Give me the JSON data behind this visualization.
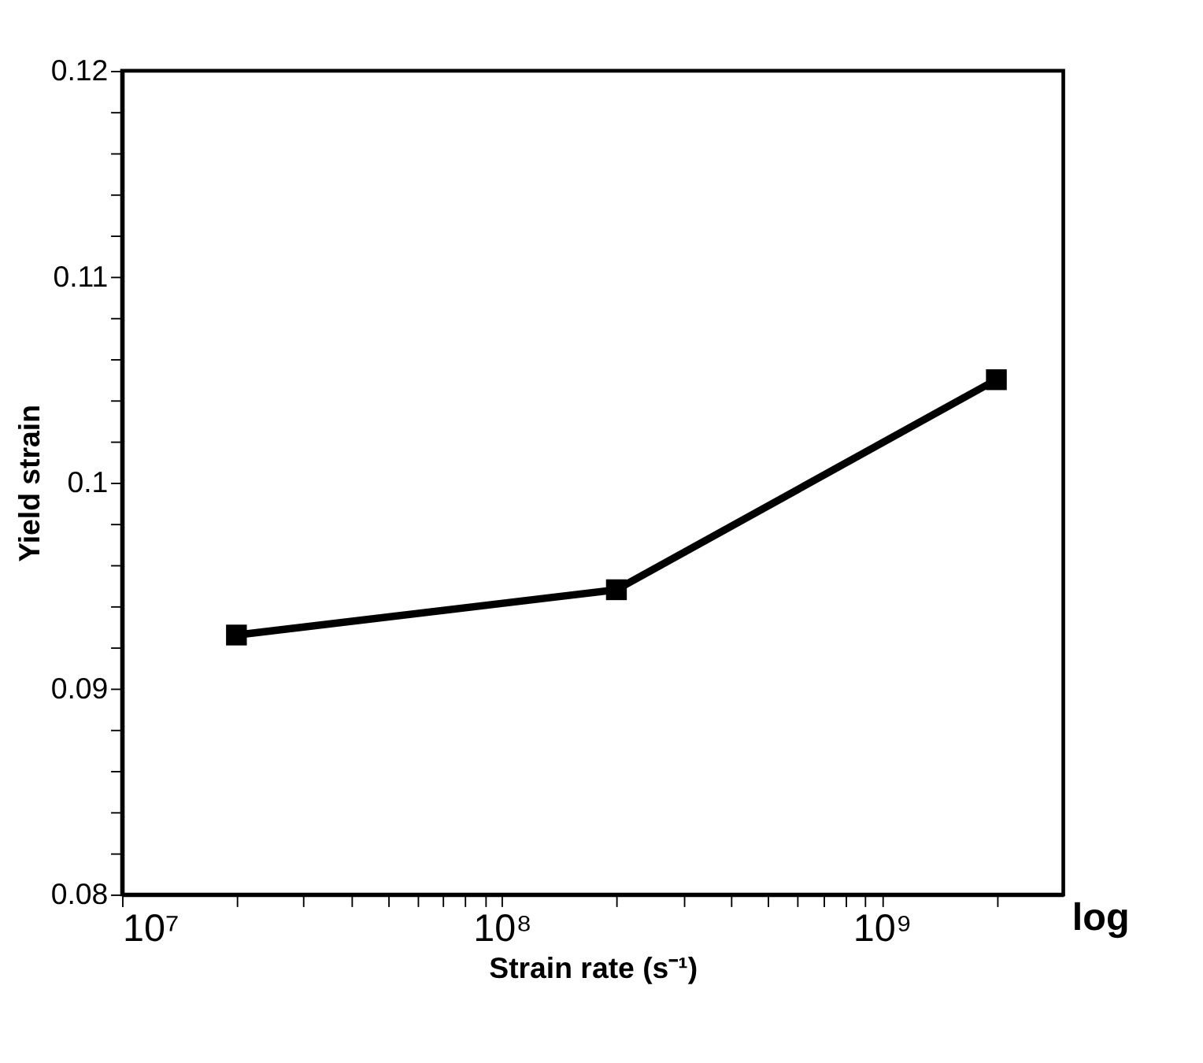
{
  "chart_data": {
    "type": "line",
    "xlabel": "Strain rate (s⁻¹)",
    "ylabel": "Yield strain",
    "x": [
      20000000,
      200000000,
      2000000000
    ],
    "series": [
      {
        "color": "#000000",
        "values": [
          0.0926,
          0.0948,
          0.105
        ]
      }
    ],
    "log": "x",
    "xlim": [
      10000000,
      3000000000
    ],
    "ylim": [
      0.08,
      0.12
    ],
    "xticks": [
      {
        "value": 10000000,
        "label": "10⁷"
      },
      {
        "value": 20000000,
        "label": null
      },
      {
        "value": 30000000,
        "label": null
      },
      {
        "value": 40000000,
        "label": null
      },
      {
        "value": 50000000,
        "label": null
      },
      {
        "value": 60000000,
        "label": null
      },
      {
        "value": 70000000,
        "label": null
      },
      {
        "value": 80000000,
        "label": null
      },
      {
        "value": 90000000,
        "label": null
      },
      {
        "value": 100000000,
        "label": "10⁸"
      },
      {
        "value": 200000000,
        "label": null
      },
      {
        "value": 300000000,
        "label": null
      },
      {
        "value": 400000000,
        "label": null
      },
      {
        "value": 500000000,
        "label": null
      },
      {
        "value": 600000000,
        "label": null
      },
      {
        "value": 700000000,
        "label": null
      },
      {
        "value": 800000000,
        "label": null
      },
      {
        "value": 900000000,
        "label": null
      },
      {
        "value": 1000000000,
        "label": "10⁹"
      },
      {
        "value": 2000000000,
        "label": null
      }
    ],
    "yticks": [
      0.08,
      {
        "value": 0.082,
        "label": null
      },
      {
        "value": 0.084,
        "label": null
      },
      {
        "value": 0.086,
        "label": null
      },
      {
        "value": 0.088,
        "label": null
      },
      0.09,
      {
        "value": 0.092,
        "label": null
      },
      {
        "value": 0.094,
        "label": null
      },
      {
        "value": 0.096,
        "label": null
      },
      {
        "value": 0.098,
        "label": null
      },
      0.1,
      {
        "value": 0.102,
        "label": null
      },
      {
        "value": 0.104,
        "label": null
      },
      {
        "value": 0.106,
        "label": null
      },
      {
        "value": 0.108,
        "label": null
      },
      0.11,
      {
        "value": 0.112,
        "label": null
      },
      {
        "value": 0.114,
        "label": null
      },
      {
        "value": 0.116,
        "label": null
      },
      {
        "value": 0.118,
        "label": null
      },
      0.12
    ],
    "marker": "square",
    "line_style": "solid",
    "grid": false,
    "annotations": [
      "log"
    ]
  }
}
